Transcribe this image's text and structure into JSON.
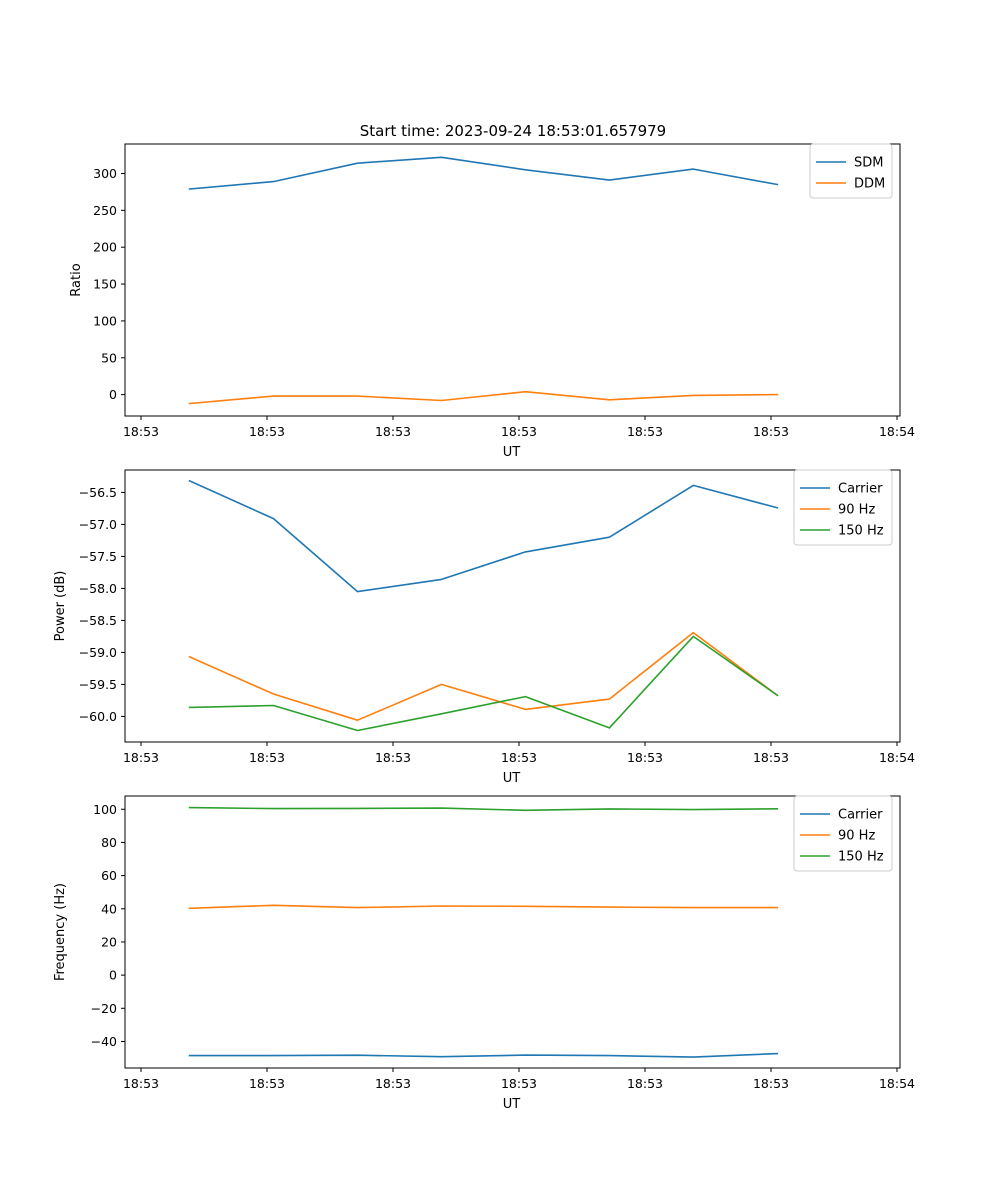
{
  "title": "Start time: 2023-09-24 18:53:01.657979",
  "colors": {
    "blue": "#1f77b4",
    "orange": "#ff7f0e",
    "green": "#2ca02c"
  },
  "chart_data": [
    {
      "type": "line",
      "xlabel": "UT",
      "ylabel": "Ratio",
      "x_tick_labels": [
        "18:53",
        "18:53",
        "18:53",
        "18:53",
        "18:53",
        "18:53",
        "18:53"
      ],
      "x_tick_last": "18:54",
      "yticks": [
        0,
        50,
        100,
        150,
        200,
        250,
        300
      ],
      "ytick_labels": [
        "0",
        "50",
        "100",
        "150",
        "200",
        "250",
        "300"
      ],
      "ylim": [
        -29,
        340
      ],
      "x": [
        0.5,
        1.15,
        1.8,
        2.45,
        3.1,
        3.75,
        4.4,
        5.05
      ],
      "xlim": [
        0,
        6.0
      ],
      "legend_position": "upper right",
      "series": [
        {
          "name": "SDM",
          "color": "#1f77b4",
          "values": [
            279,
            289,
            314,
            322,
            305,
            291,
            306,
            285
          ]
        },
        {
          "name": "DDM",
          "color": "#ff7f0e",
          "values": [
            -12,
            -2,
            -2,
            -8,
            4,
            -7,
            -1,
            0
          ]
        }
      ]
    },
    {
      "type": "line",
      "xlabel": "UT",
      "ylabel": "Power (dB)",
      "x_tick_labels": [
        "18:53",
        "18:53",
        "18:53",
        "18:53",
        "18:53",
        "18:53",
        "18:53"
      ],
      "x_tick_last": "18:54",
      "yticks": [
        -60.0,
        -59.5,
        -59.0,
        -58.5,
        -58.0,
        -57.5,
        -57.0,
        -56.5
      ],
      "ytick_labels": [
        "−60.0",
        "−59.5",
        "−59.0",
        "−58.5",
        "−58.0",
        "−57.5",
        "−57.0",
        "−56.5"
      ],
      "ylim": [
        -60.4,
        -56.15
      ],
      "x": [
        0.5,
        1.15,
        1.8,
        2.45,
        3.1,
        3.75,
        4.4,
        5.05
      ],
      "xlim": [
        0,
        6.0
      ],
      "legend_position": "upper right",
      "series": [
        {
          "name": "Carrier",
          "color": "#1f77b4",
          "values": [
            -56.32,
            -56.91,
            -58.05,
            -57.86,
            -57.43,
            -57.2,
            -56.39,
            -56.74
          ]
        },
        {
          "name": "90 Hz",
          "color": "#ff7f0e",
          "values": [
            -59.07,
            -59.65,
            -60.06,
            -59.5,
            -59.89,
            -59.73,
            -58.69,
            -59.67
          ]
        },
        {
          "name": "150 Hz",
          "color": "#2ca02c",
          "values": [
            -59.86,
            -59.83,
            -60.22,
            -59.96,
            -59.69,
            -60.18,
            -58.75,
            -59.67
          ]
        }
      ]
    },
    {
      "type": "line",
      "xlabel": "UT",
      "ylabel": "Frequency (Hz)",
      "x_tick_labels": [
        "18:53",
        "18:53",
        "18:53",
        "18:53",
        "18:53",
        "18:53",
        "18:53"
      ],
      "x_tick_last": "18:54",
      "yticks": [
        -40,
        -20,
        0,
        20,
        40,
        60,
        80,
        100
      ],
      "ytick_labels": [
        "−40",
        "−20",
        "0",
        "20",
        "40",
        "60",
        "80",
        "100"
      ],
      "ylim": [
        -56,
        108
      ],
      "x": [
        0.5,
        1.15,
        1.8,
        2.45,
        3.1,
        3.75,
        4.4,
        5.05
      ],
      "xlim": [
        0,
        6.0
      ],
      "legend_position": "upper right",
      "series": [
        {
          "name": "Carrier",
          "color": "#1f77b4",
          "values": [
            -48.5,
            -48.5,
            -48.3,
            -49.2,
            -48.2,
            -48.5,
            -49.4,
            -47.3
          ]
        },
        {
          "name": "90 Hz",
          "color": "#ff7f0e",
          "values": [
            40.3,
            42.1,
            40.7,
            41.7,
            41.5,
            41.0,
            40.7,
            40.7
          ]
        },
        {
          "name": "150 Hz",
          "color": "#2ca02c",
          "values": [
            101.0,
            100.4,
            100.5,
            100.7,
            99.4,
            100.2,
            99.8,
            100.3
          ]
        }
      ]
    }
  ]
}
